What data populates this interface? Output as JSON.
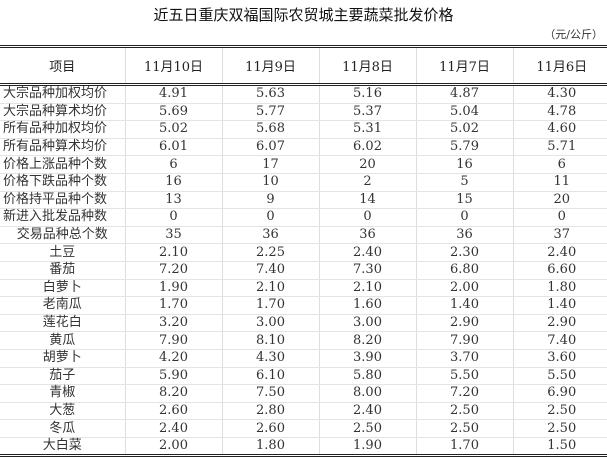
{
  "title": "近五日重庆双福国际农贸城主要蔬菜批发价格",
  "unit": "（元/公斤）",
  "headers": [
    "项目",
    "11月10日",
    "11月9日",
    "11月8日",
    "11月7日",
    "11月6日"
  ],
  "rows": [
    {
      "label": "大宗品种加权均价",
      "align": "left",
      "values": [
        "4.91",
        "5.63",
        "5.16",
        "4.87",
        "4.30"
      ]
    },
    {
      "label": "大宗品种算术均价",
      "align": "left",
      "values": [
        "5.69",
        "5.77",
        "5.37",
        "5.04",
        "4.78"
      ]
    },
    {
      "label": "所有品种加权均价",
      "align": "left",
      "values": [
        "5.02",
        "5.68",
        "5.31",
        "5.02",
        "4.60"
      ]
    },
    {
      "label": "所有品种算术均价",
      "align": "left",
      "values": [
        "6.01",
        "6.07",
        "6.02",
        "5.79",
        "5.71"
      ]
    },
    {
      "label": "价格上涨品种个数",
      "align": "left",
      "values": [
        "6",
        "17",
        "20",
        "16",
        "6"
      ]
    },
    {
      "label": "价格下跌品种个数",
      "align": "left",
      "values": [
        "16",
        "10",
        "2",
        "5",
        "11"
      ]
    },
    {
      "label": "价格持平品种个数",
      "align": "left",
      "values": [
        "13",
        "9",
        "14",
        "15",
        "20"
      ]
    },
    {
      "label": "新进入批发品种数",
      "align": "left",
      "values": [
        "0",
        "0",
        "0",
        "0",
        "0"
      ]
    },
    {
      "label": "交易品种总个数",
      "align": "center",
      "values": [
        "35",
        "36",
        "36",
        "36",
        "37"
      ]
    },
    {
      "label": "土豆",
      "align": "center",
      "values": [
        "2.10",
        "2.25",
        "2.40",
        "2.30",
        "2.40"
      ]
    },
    {
      "label": "番茄",
      "align": "center",
      "values": [
        "7.20",
        "7.40",
        "7.30",
        "6.80",
        "6.60"
      ]
    },
    {
      "label": "白萝卜",
      "align": "center",
      "values": [
        "1.90",
        "2.10",
        "2.10",
        "2.00",
        "1.80"
      ]
    },
    {
      "label": "老南瓜",
      "align": "center",
      "values": [
        "1.70",
        "1.70",
        "1.60",
        "1.40",
        "1.40"
      ]
    },
    {
      "label": "莲花白",
      "align": "center",
      "values": [
        "3.20",
        "3.00",
        "3.00",
        "2.90",
        "2.90"
      ]
    },
    {
      "label": "黄瓜",
      "align": "center",
      "values": [
        "7.90",
        "8.10",
        "8.20",
        "7.90",
        "7.40"
      ]
    },
    {
      "label": "胡萝卜",
      "align": "center",
      "values": [
        "4.20",
        "4.30",
        "3.90",
        "3.70",
        "3.60"
      ]
    },
    {
      "label": "茄子",
      "align": "center",
      "values": [
        "5.90",
        "6.10",
        "5.80",
        "5.50",
        "5.50"
      ]
    },
    {
      "label": "青椒",
      "align": "center",
      "values": [
        "8.20",
        "7.50",
        "8.00",
        "7.20",
        "6.90"
      ]
    },
    {
      "label": "大葱",
      "align": "center",
      "values": [
        "2.60",
        "2.80",
        "2.40",
        "2.50",
        "2.50"
      ]
    },
    {
      "label": "冬瓜",
      "align": "center",
      "values": [
        "2.40",
        "2.60",
        "2.50",
        "2.50",
        "2.50"
      ]
    },
    {
      "label": "大白菜",
      "align": "center",
      "values": [
        "2.00",
        "1.80",
        "1.90",
        "1.70",
        "1.50"
      ]
    }
  ]
}
